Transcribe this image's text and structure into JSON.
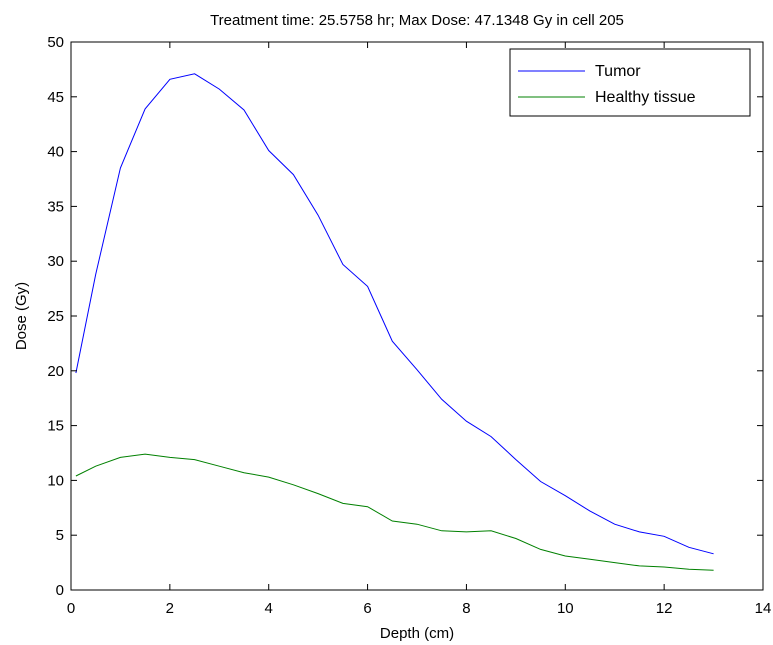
{
  "chart_data": {
    "type": "line",
    "title": "Treatment time: 25.5758 hr; Max Dose: 47.1348 Gy in cell 205",
    "xlabel": "Depth (cm)",
    "ylabel": "Dose (Gy)",
    "xlim": [
      0,
      14
    ],
    "ylim": [
      0,
      50
    ],
    "x_ticks": [
      0,
      2,
      4,
      6,
      8,
      10,
      12,
      14
    ],
    "y_ticks": [
      0,
      5,
      10,
      15,
      20,
      25,
      30,
      35,
      40,
      45,
      50
    ],
    "grid": false,
    "legend_position": "top-right",
    "series": [
      {
        "name": "Tumor",
        "color": "#0000ff",
        "x": [
          0.1,
          0.5,
          1.0,
          1.5,
          2.0,
          2.5,
          3.0,
          3.5,
          4.0,
          4.5,
          5.0,
          5.5,
          6.0,
          6.5,
          7.0,
          7.5,
          8.0,
          8.5,
          9.0,
          9.5,
          10.0,
          10.5,
          11.0,
          11.5,
          12.0,
          12.5,
          13.0
        ],
        "y": [
          19.8,
          28.8,
          38.5,
          43.9,
          46.6,
          47.1,
          45.7,
          43.8,
          40.1,
          37.9,
          34.2,
          29.7,
          27.7,
          22.7,
          20.1,
          17.4,
          15.4,
          14.0,
          11.9,
          9.9,
          8.6,
          7.2,
          6.0,
          5.3,
          4.9,
          3.9,
          3.3
        ]
      },
      {
        "name": "Healthy tissue",
        "color": "#008000",
        "x": [
          0.1,
          0.5,
          1.0,
          1.5,
          2.0,
          2.5,
          3.0,
          3.5,
          4.0,
          4.5,
          5.0,
          5.5,
          6.0,
          6.5,
          7.0,
          7.5,
          8.0,
          8.5,
          9.0,
          9.5,
          10.0,
          10.5,
          11.0,
          11.5,
          12.0,
          12.5,
          13.0
        ],
        "y": [
          10.4,
          11.3,
          12.1,
          12.4,
          12.1,
          11.9,
          11.3,
          10.7,
          10.3,
          9.6,
          8.8,
          7.9,
          7.6,
          6.3,
          6.0,
          5.4,
          5.3,
          5.4,
          4.7,
          3.7,
          3.1,
          2.8,
          2.5,
          2.2,
          2.1,
          1.9,
          1.8
        ]
      }
    ]
  }
}
